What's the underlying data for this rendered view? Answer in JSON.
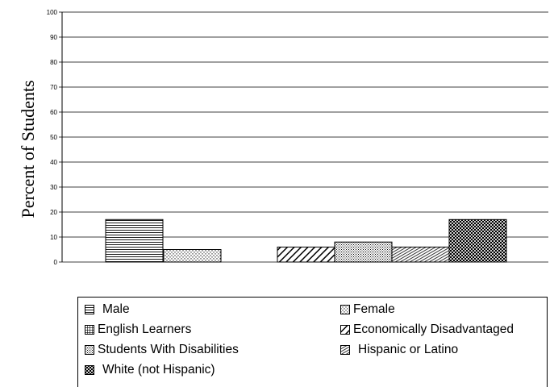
{
  "chart_data": {
    "type": "bar",
    "title": "",
    "xlabel": "",
    "ylabel": "Percent of Students",
    "ylim": [
      0,
      100
    ],
    "yticks": [
      "0",
      "10",
      "20",
      "30",
      "40",
      "50",
      "60",
      "70",
      "80",
      "90",
      "100"
    ],
    "grid": true,
    "legend_position": "bottom",
    "series": [
      {
        "name": "Male",
        "values": [
          17
        ]
      },
      {
        "name": "Female",
        "values": [
          5
        ]
      },
      {
        "name": "English Learners",
        "values": [
          null
        ]
      },
      {
        "name": "Economically Disadvantaged",
        "values": [
          6
        ]
      },
      {
        "name": "Students With Disabilities",
        "values": [
          8
        ]
      },
      {
        "name": "Hispanic or Latino",
        "values": [
          6
        ]
      },
      {
        "name": "White (not Hispanic)",
        "values": [
          17
        ]
      }
    ],
    "series_patterns": [
      "hlines",
      "dots",
      "grid",
      "diagonal",
      "stipple",
      "hatch",
      "checker"
    ]
  }
}
